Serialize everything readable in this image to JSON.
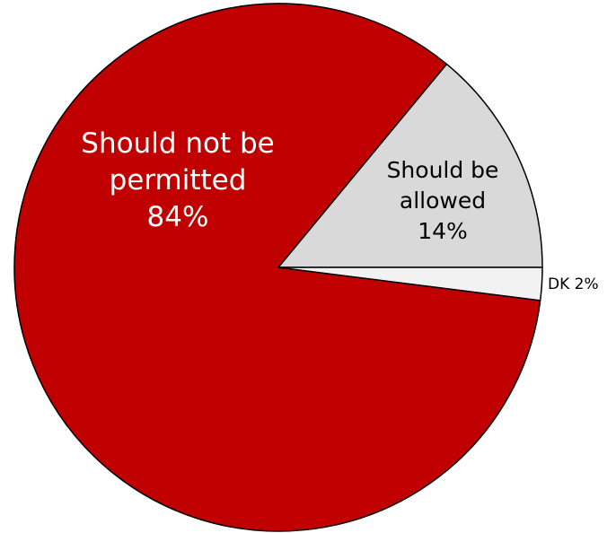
{
  "chart_data": {
    "type": "pie",
    "title": "",
    "slices": [
      {
        "label_lines": [
          "Should not be",
          "permitted",
          "84%"
        ],
        "category": "Should not be permitted",
        "value": 84,
        "color": "#c00000",
        "text_color": "#ffffff"
      },
      {
        "label_lines": [
          "Should be",
          "allowed",
          "14%"
        ],
        "category": "Should be allowed",
        "value": 14,
        "color": "#d9d9d9",
        "text_color": "#000000"
      },
      {
        "label_lines": [
          "DK 2%"
        ],
        "category": "DK",
        "value": 2,
        "color": "#f2f2f2",
        "text_color": "#000000"
      }
    ],
    "legend": "none",
    "start_angle": "3 o'clock",
    "direction": "counterclockwise"
  }
}
